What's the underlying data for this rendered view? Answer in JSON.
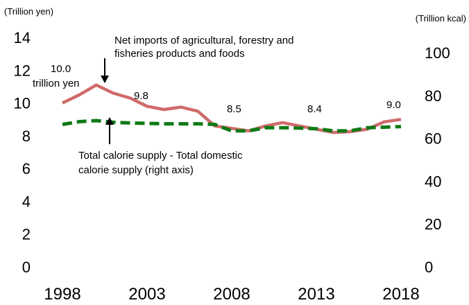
{
  "chart_data": {
    "type": "line",
    "title": "",
    "left_axis_unit": "(Trillion yen)",
    "right_axis_unit": "(Trillion kcal)",
    "x_ticks": [
      "1998",
      "",
      "2003",
      "2008",
      "2013",
      "2018"
    ],
    "x": [
      1998,
      1999,
      2000,
      2001,
      2002,
      2003,
      2004,
      2005,
      2006,
      2007,
      2008,
      2009,
      2010,
      2011,
      2012,
      2013,
      2014,
      2015,
      2016,
      2017,
      2018
    ],
    "left_ylim": [
      0,
      14
    ],
    "left_yticks": [
      "0",
      "2",
      "4",
      "6",
      "8",
      "10",
      "12",
      "14"
    ],
    "right_ylim": [
      0,
      100
    ],
    "right_yticks": [
      "0",
      "20",
      "40",
      "60",
      "80",
      "100"
    ],
    "grid": false,
    "legend": "none",
    "series": [
      {
        "name": "Net imports of agricultural, forestry and fisheries products and foods",
        "axis": "left",
        "color": "#d06a6a",
        "style": "solid",
        "values": [
          10.0,
          10.5,
          11.1,
          10.6,
          10.3,
          9.8,
          9.6,
          9.75,
          9.5,
          8.6,
          8.45,
          8.3,
          8.6,
          8.8,
          8.6,
          8.4,
          8.2,
          8.25,
          8.4,
          8.85,
          9.0
        ]
      },
      {
        "name": "Total calorie supply - Total domestic calorie supply (right axis)",
        "axis": "right",
        "color": "#0f7a16",
        "style": "dashed",
        "values": [
          66.5,
          67.8,
          68.3,
          67.5,
          67.2,
          67.0,
          66.8,
          66.8,
          66.8,
          66.5,
          63.5,
          63.5,
          65.0,
          65.0,
          64.8,
          64.5,
          63.5,
          63.5,
          65.0,
          65.2,
          65.5
        ]
      }
    ],
    "annotations": {
      "net_imports_line1": "Net imports of agricultural, forestry and",
      "net_imports_line2": "fisheries products and foods",
      "calorie_line1": "Total calorie supply - Total domestic",
      "calorie_line2": "calorie supply (right axis)",
      "start_value": "10.0",
      "start_unit": "trillion yen",
      "label_2003": "9.8",
      "label_2008": "8.5",
      "label_2013": "8.4",
      "label_2018": "9.0"
    }
  }
}
